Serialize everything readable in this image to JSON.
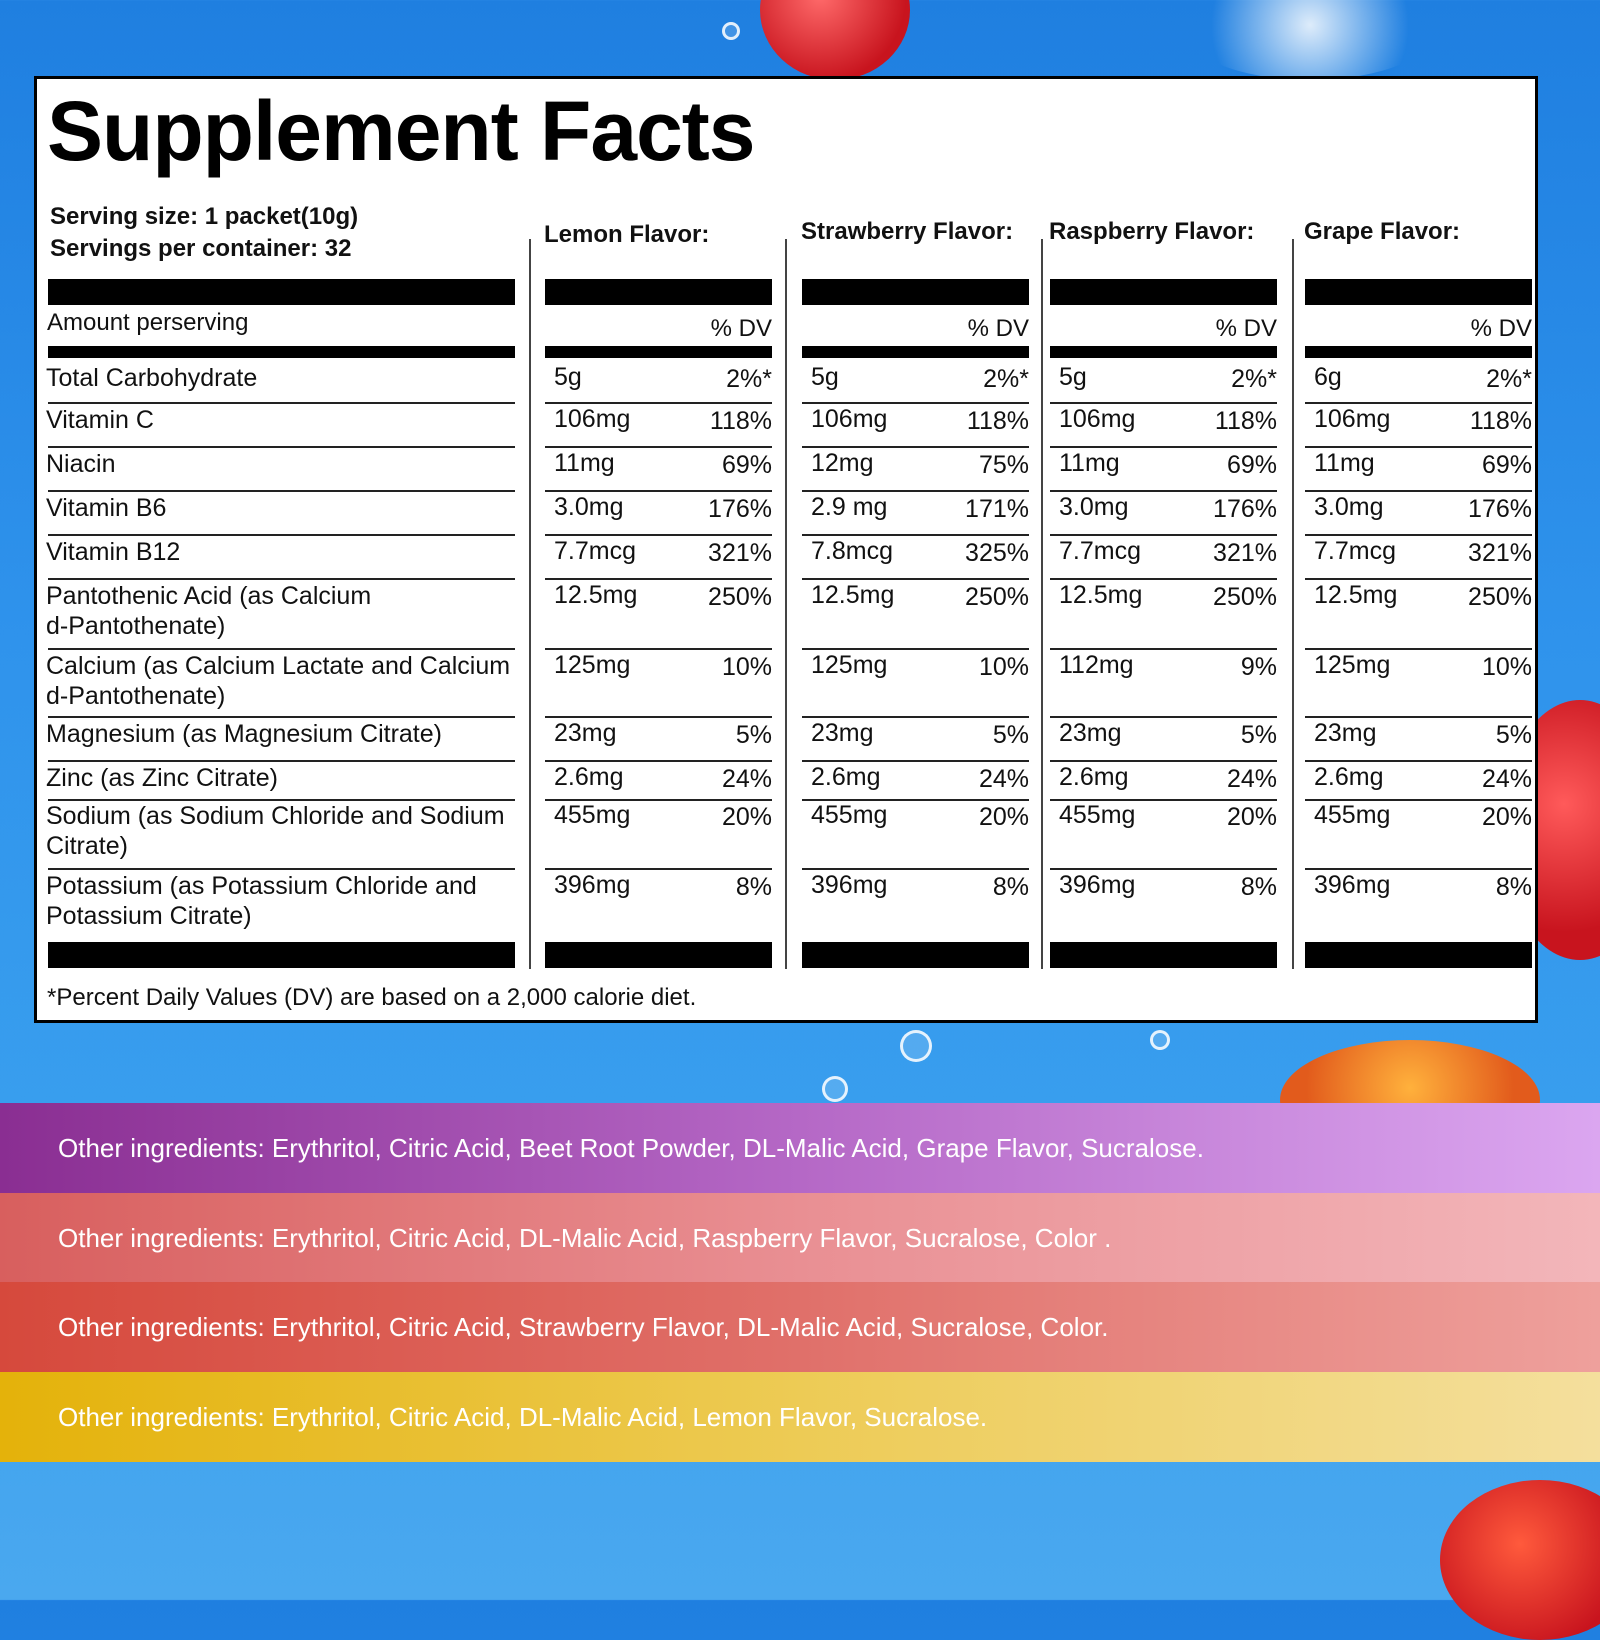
{
  "title": "Supplement Facts",
  "serving": {
    "size": "Serving size: 1 packet(10g)",
    "per_container": "Servings per container: 32"
  },
  "amount_label": "Amount perserving",
  "dv_label": "% DV",
  "flavors": [
    {
      "name": "Lemon Flavor:",
      "values": [
        [
          "5g",
          "2%*"
        ],
        [
          "106mg",
          "118%"
        ],
        [
          "11mg",
          "69%"
        ],
        [
          "3.0mg",
          "176%"
        ],
        [
          "7.7mcg",
          "321%"
        ],
        [
          "12.5mg",
          "250%"
        ],
        [
          "125mg",
          "10%"
        ],
        [
          "23mg",
          "5%"
        ],
        [
          "2.6mg",
          "24%"
        ],
        [
          "455mg",
          "20%"
        ],
        [
          "396mg",
          "8%"
        ]
      ]
    },
    {
      "name": "Strawberry Flavor:",
      "values": [
        [
          "5g",
          "2%*"
        ],
        [
          "106mg",
          "118%"
        ],
        [
          "12mg",
          "75%"
        ],
        [
          "2.9 mg",
          "171%"
        ],
        [
          "7.8mcg",
          "325%"
        ],
        [
          "12.5mg",
          "250%"
        ],
        [
          "125mg",
          "10%"
        ],
        [
          "23mg",
          "5%"
        ],
        [
          "2.6mg",
          "24%"
        ],
        [
          "455mg",
          "20%"
        ],
        [
          "396mg",
          "8%"
        ]
      ]
    },
    {
      "name": "Raspberry Flavor:",
      "values": [
        [
          "5g",
          "2%*"
        ],
        [
          "106mg",
          "118%"
        ],
        [
          "11mg",
          "69%"
        ],
        [
          "3.0mg",
          "176%"
        ],
        [
          "7.7mcg",
          "321%"
        ],
        [
          "12.5mg",
          "250%"
        ],
        [
          "112mg",
          "9%"
        ],
        [
          "23mg",
          "5%"
        ],
        [
          "2.6mg",
          "24%"
        ],
        [
          "455mg",
          "20%"
        ],
        [
          "396mg",
          "8%"
        ]
      ]
    },
    {
      "name": "Grape Flavor:",
      "values": [
        [
          "6g",
          "2%*"
        ],
        [
          "106mg",
          "118%"
        ],
        [
          "11mg",
          "69%"
        ],
        [
          "3.0mg",
          "176%"
        ],
        [
          "7.7mcg",
          "321%"
        ],
        [
          "12.5mg",
          "250%"
        ],
        [
          "125mg",
          "10%"
        ],
        [
          "23mg",
          "5%"
        ],
        [
          "2.6mg",
          "24%"
        ],
        [
          "455mg",
          "20%"
        ],
        [
          "396mg",
          "8%"
        ]
      ]
    }
  ],
  "nutrients": [
    "Total Carbohydrate",
    "Vitamin  C",
    "Niacin",
    "Vitamin B6",
    "Vitamin B12",
    "Pantothenic Acid (as Calcium\nd-Pantothenate)",
    "Calcium (as Calcium Lactate and Calcium\nd-Pantothenate)",
    "Magnesium (as Magnesium Citrate)",
    "Zinc (as Zinc Citrate)",
    "Sodium (as Sodium Chloride and Sodium\nCitrate)",
    "Potassium (as Potassium Chloride and\nPotassium Citrate)"
  ],
  "footnote": "*Percent Daily Values (DV) are based on a 2,000 calorie diet.",
  "ingredients": {
    "grape": "Other ingredients: Erythritol, Citric Acid, Beet Root Powder, DL-Malic Acid, Grape Flavor, Sucralose.",
    "raspberry": "Other ingredients: Erythritol, Citric Acid, DL-Malic Acid, Raspberry Flavor, Sucralose, Color .",
    "strawberry": "Other ingredients: Erythritol, Citric Acid, Strawberry Flavor, DL-Malic Acid, Sucralose, Color.",
    "lemon": "Other ingredients: Erythritol, Citric Acid, DL-Malic Acid, Lemon Flavor, Sucralose."
  },
  "band_colors": {
    "grape": "#8a2e92",
    "raspberry": "#d85f5e",
    "strawberry": "#d6493c",
    "lemon": "#e4b20a"
  },
  "background_color": "#2f93ec"
}
